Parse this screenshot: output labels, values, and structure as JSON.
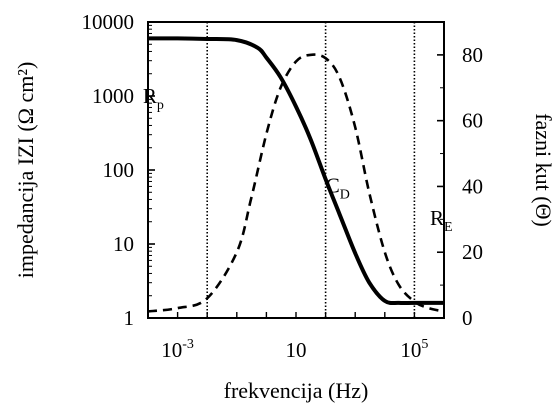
{
  "chart_data": {
    "type": "line",
    "title": "",
    "xlabel": "frekvencija (Hz)",
    "ylabel_left": "impedancija IZI (Ω cm²)",
    "ylabel_right": "fazni kut (Θ)",
    "x_scale": "log",
    "xlim": [
      0.0001,
      1000000
    ],
    "x_ticks": [
      {
        "value": 0.001,
        "base": "10",
        "exp": "-3"
      },
      {
        "value": 10,
        "base": "10",
        "exp": ""
      },
      {
        "value": 100000,
        "base": "10",
        "exp": "5"
      }
    ],
    "y_left_scale": "log",
    "y_left_lim": [
      1,
      10000
    ],
    "y_left_ticks": [
      {
        "value": 1,
        "label": "1"
      },
      {
        "value": 10,
        "label": "10"
      },
      {
        "value": 100,
        "label": "100"
      },
      {
        "value": 1000,
        "label": "1000"
      },
      {
        "value": 10000,
        "label": "10000"
      }
    ],
    "y_right_lim": [
      0,
      90
    ],
    "y_right_ticks": [
      {
        "value": 0,
        "label": "0"
      },
      {
        "value": 20,
        "label": "20"
      },
      {
        "value": 40,
        "label": "40"
      },
      {
        "value": 60,
        "label": "60"
      },
      {
        "value": 80,
        "label": "80"
      }
    ],
    "series": [
      {
        "axis": "left",
        "style": "solid",
        "x": [
          0.0001,
          0.001,
          0.01,
          0.1,
          0.5,
          1,
          3,
          10,
          30,
          100,
          300,
          1000,
          3000,
          10000,
          30000,
          100000,
          1000000
        ],
        "y": [
          6000,
          6000,
          5900,
          5700,
          4500,
          3300,
          1800,
          720,
          270,
          75,
          25,
          7.5,
          3,
          1.7,
          1.6,
          1.6,
          1.6
        ]
      },
      {
        "axis": "right",
        "style": "dashed",
        "x": [
          0.0001,
          0.001,
          0.01,
          0.1,
          0.3,
          1,
          3,
          10,
          30,
          100,
          300,
          1000,
          3000,
          10000,
          30000,
          100000,
          300000,
          1000000
        ],
        "y": [
          2,
          3,
          6,
          20,
          36,
          56,
          70,
          78,
          80,
          79,
          73,
          58,
          38,
          20,
          10,
          5,
          3,
          2
        ]
      }
    ],
    "vertical_lines": [
      0.01,
      100,
      100000
    ],
    "annotations": [
      {
        "text": "R",
        "sub": "p",
        "x": 0.0002,
        "y_left": 800
      },
      {
        "text": "C",
        "sub": "D",
        "x": 300,
        "y_left": 50
      },
      {
        "text": "R",
        "sub": "E",
        "x": 1000000,
        "y_left": 18
      }
    ],
    "grid": false,
    "legend": "none"
  }
}
